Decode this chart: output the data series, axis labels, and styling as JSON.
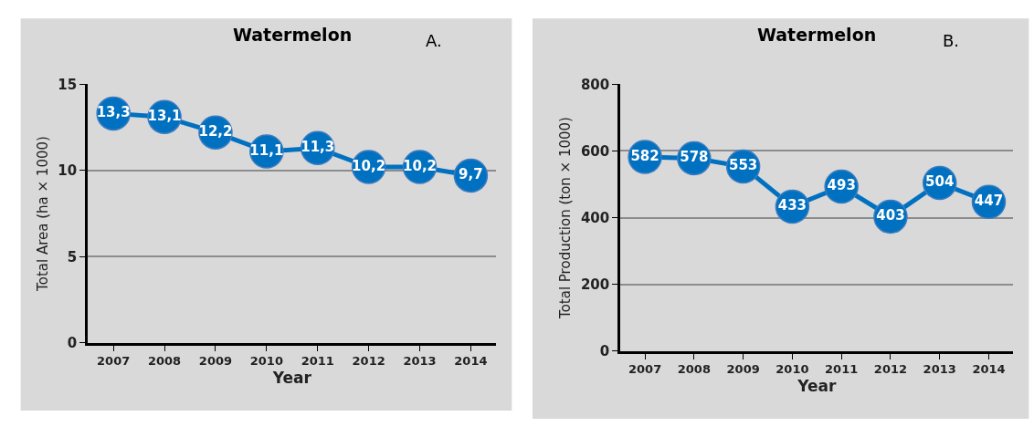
{
  "chart_data": [
    {
      "type": "line",
      "title": "Watermelon",
      "annotations": [
        "A."
      ],
      "xlabel": "Year",
      "ylabel": "Total Area (ha × 1000)",
      "categories": [
        "2007",
        "2008",
        "2009",
        "2010",
        "2011",
        "2012",
        "2013",
        "2014"
      ],
      "series": [
        {
          "color": "#0070c0",
          "values": [
            13.3,
            13.1,
            12.2,
            11.1,
            11.3,
            10.2,
            10.2,
            9.7
          ],
          "value_labels": [
            "13,3",
            "13,1",
            "12,2",
            "11,1",
            "11,3",
            "10,2",
            "10,2",
            "9,7"
          ]
        }
      ],
      "ylim": [
        0,
        15
      ],
      "yticks": [
        0,
        5,
        10,
        15
      ],
      "grid": "y",
      "marker": "circle",
      "line_style": "solid"
    },
    {
      "type": "line",
      "title": "Watermelon",
      "annotations": [
        "B."
      ],
      "xlabel": "Year",
      "ylabel": "Total Production (ton × 1000)",
      "categories": [
        "2007",
        "2008",
        "2009",
        "2010",
        "2011",
        "2012",
        "2013",
        "2014"
      ],
      "series": [
        {
          "color": "#0070c0",
          "values": [
            582,
            578,
            553,
            433,
            493,
            403,
            504,
            447
          ]
        }
      ],
      "ylim": [
        0,
        800
      ],
      "yticks": [
        0,
        200,
        400,
        600,
        800
      ],
      "grid": "y",
      "marker": "circle",
      "line_style": "solid",
      "data_labels": true
    }
  ]
}
